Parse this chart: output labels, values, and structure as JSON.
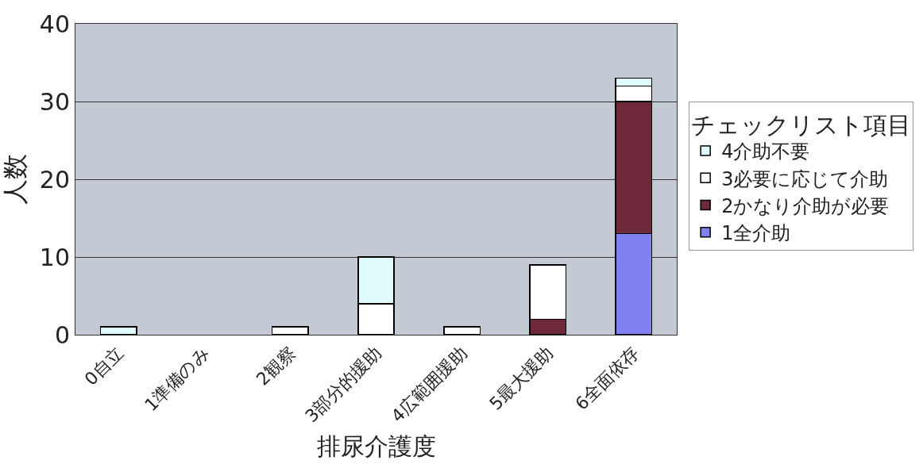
{
  "chart_data": {
    "type": "bar",
    "stacked": true,
    "xlabel": "排尿介護度",
    "ylabel": "人数",
    "legend_title": "チェックリスト項目",
    "categories": [
      "0自立",
      "1準備のみ",
      "2観察",
      "3部分的援助",
      "4広範囲援助",
      "5最大援助",
      "6全面依存"
    ],
    "series": [
      {
        "name": "1全介助",
        "color": "#8080f0",
        "values": [
          0,
          0,
          0,
          0,
          0,
          0,
          13
        ]
      },
      {
        "name": "2かなり介助が必要",
        "color": "#6e2a3a",
        "values": [
          0,
          0,
          0,
          0,
          0,
          2,
          17
        ]
      },
      {
        "name": "3必要に応じて介助",
        "color": "#ffffff",
        "values": [
          0,
          0,
          1,
          4,
          1,
          7,
          2
        ]
      },
      {
        "name": "4介助不要",
        "color": "#e0fbfb",
        "values": [
          1,
          0,
          0,
          6,
          0,
          0,
          1
        ]
      }
    ],
    "ylim": [
      0,
      40
    ],
    "yticks": [
      0,
      10,
      20,
      30,
      40
    ],
    "grid": "y",
    "legend": "right"
  }
}
